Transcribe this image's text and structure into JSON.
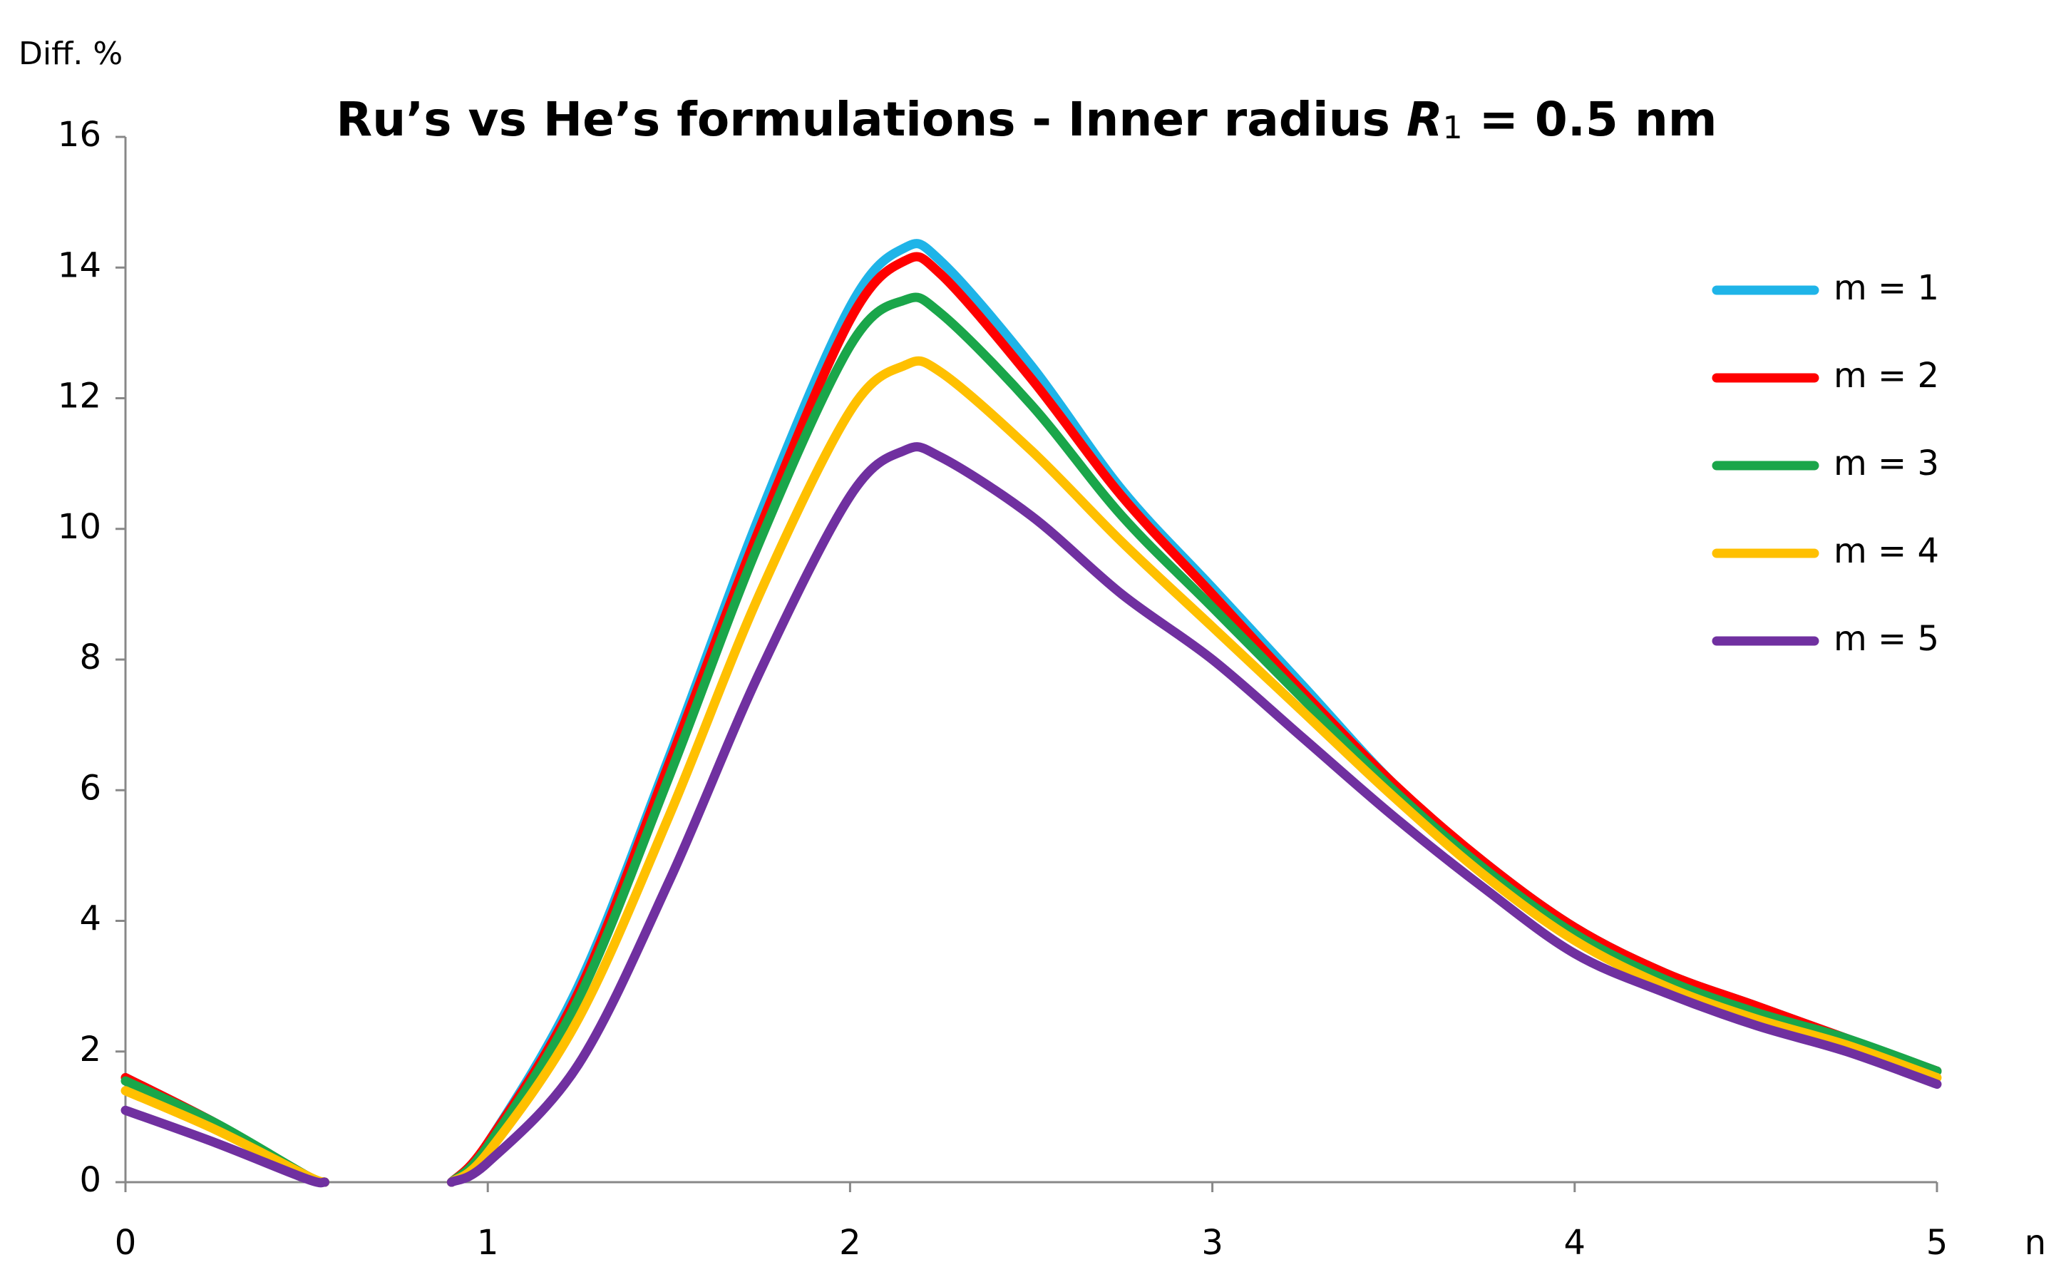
{
  "chart_data": {
    "type": "line",
    "title": [
      "Ru’s vs He’s formulations - Inner radius ",
      "R",
      "1",
      " = 0.5 nm"
    ],
    "y_label": "Diff. %",
    "x_label": "n",
    "x": [
      0,
      0.25,
      0.5,
      0.55,
      0.7,
      0.9,
      1,
      1.25,
      1.5,
      1.75,
      2,
      2.15,
      2.25,
      2.5,
      2.75,
      3,
      3.25,
      3.5,
      3.75,
      4,
      4.25,
      4.5,
      4.75,
      5
    ],
    "series": [
      {
        "name": "m = 1",
        "color": "#1fb4e8",
        "values": [
          1.6,
          0.9,
          0.1,
          0,
          null,
          0,
          0.6,
          3,
          6.5,
          10.2,
          13.4,
          14.3,
          14.1,
          12.5,
          10.6,
          9.1,
          7.6,
          6.1,
          4.9,
          3.9,
          3.2,
          2.7,
          2.2,
          1.7
        ]
      },
      {
        "name": "m = 2",
        "color": "#ff0000",
        "values": [
          1.6,
          0.9,
          0.1,
          0,
          null,
          0,
          0.6,
          2.9,
          6.4,
          10.0,
          13.2,
          14.1,
          13.9,
          12.3,
          10.5,
          9.0,
          7.5,
          6.1,
          4.9,
          3.9,
          3.2,
          2.7,
          2.2,
          1.7
        ]
      },
      {
        "name": "m = 3",
        "color": "#1aa64a",
        "values": [
          1.55,
          0.9,
          0.1,
          0,
          null,
          0,
          0.55,
          2.8,
          6.2,
          9.8,
          12.8,
          13.5,
          13.3,
          11.9,
          10.2,
          8.8,
          7.4,
          6.0,
          4.8,
          3.8,
          3.1,
          2.6,
          2.2,
          1.7
        ]
      },
      {
        "name": "m = 4",
        "color": "#ffc000",
        "values": [
          1.4,
          0.8,
          0.1,
          0,
          null,
          0,
          0.45,
          2.5,
          5.6,
          9.0,
          11.8,
          12.5,
          12.4,
          11.2,
          9.8,
          8.5,
          7.2,
          5.9,
          4.7,
          3.7,
          3.0,
          2.5,
          2.1,
          1.6
        ]
      },
      {
        "name": "m = 5",
        "color": "#7030a0",
        "values": [
          1.1,
          0.6,
          0.05,
          0,
          null,
          0,
          0.3,
          1.8,
          4.6,
          7.8,
          10.5,
          11.2,
          11.1,
          10.2,
          9.0,
          8.0,
          6.8,
          5.6,
          4.5,
          3.5,
          2.9,
          2.4,
          2.0,
          1.5
        ]
      }
    ],
    "xlim": [
      0,
      5
    ],
    "xticks": [
      0,
      1,
      2,
      3,
      4,
      5
    ],
    "ylim": [
      0,
      16
    ],
    "yticks": [
      0,
      2,
      4,
      6,
      8,
      10,
      12,
      14,
      16
    ],
    "grid": false,
    "legend": "upper right"
  }
}
